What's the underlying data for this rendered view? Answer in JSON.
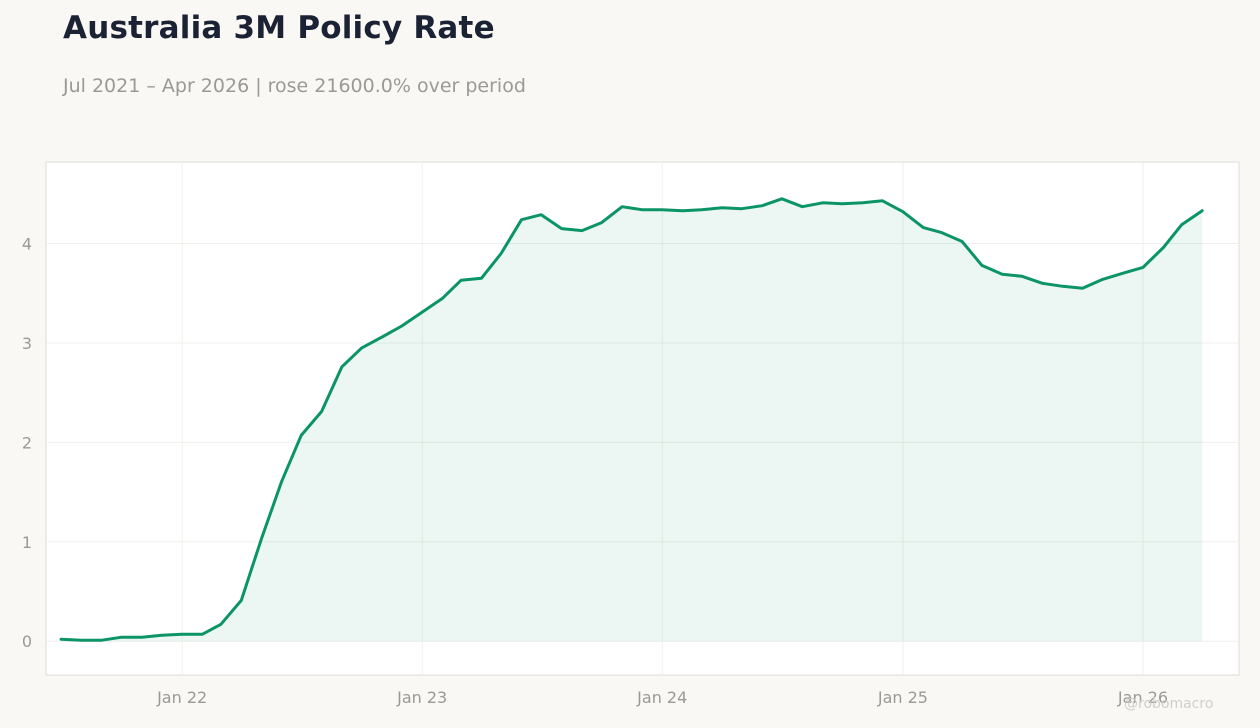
{
  "header": {
    "title": "Australia 3M Policy Rate",
    "subtitle": "Jul 2021 – Apr 2026 | rose 21600.0% over period"
  },
  "watermark": "@robomacro",
  "colors": {
    "line": "#0b9467",
    "fill": "#0b9467",
    "background": "#f9f8f5",
    "plot_background": "#ffffff",
    "grid": "#efefeb",
    "axis_text": "#999995",
    "title": "#1a2234"
  },
  "chart_data": {
    "type": "area",
    "title": "Australia 3M Policy Rate",
    "xlabel": "",
    "ylabel": "",
    "grid": true,
    "legend": "none",
    "x_range": [
      "2021-06-08",
      "2026-05-27"
    ],
    "ylim": [
      -0.34,
      4.82
    ],
    "yticks": [
      0,
      1,
      2,
      3,
      4
    ],
    "xticks": [
      {
        "date": "2022-01-01",
        "label": "Jan 22"
      },
      {
        "date": "2023-01-01",
        "label": "Jan 23"
      },
      {
        "date": "2024-01-01",
        "label": "Jan 24"
      },
      {
        "date": "2025-01-01",
        "label": "Jan 25"
      },
      {
        "date": "2026-01-01",
        "label": "Jan 26"
      }
    ],
    "series": [
      {
        "x": [
          "2021-07-01",
          "2021-08-01",
          "2021-09-01",
          "2021-10-01",
          "2021-11-01",
          "2021-12-01",
          "2022-01-01",
          "2022-02-01",
          "2022-03-01",
          "2022-04-01",
          "2022-05-01",
          "2022-06-01",
          "2022-07-01",
          "2022-08-01",
          "2022-09-01",
          "2022-10-01",
          "2022-11-01",
          "2022-12-01",
          "2023-01-01",
          "2023-02-01",
          "2023-03-01",
          "2023-04-01",
          "2023-05-01",
          "2023-06-01",
          "2023-07-01",
          "2023-08-01",
          "2023-09-01",
          "2023-10-01",
          "2023-11-01",
          "2023-12-01",
          "2024-01-01",
          "2024-02-01",
          "2024-03-01",
          "2024-04-01",
          "2024-05-01",
          "2024-06-01",
          "2024-07-01",
          "2024-08-01",
          "2024-09-01",
          "2024-10-01",
          "2024-11-01",
          "2024-12-01",
          "2025-01-01",
          "2025-02-01",
          "2025-03-01",
          "2025-04-01",
          "2025-05-01",
          "2025-06-01",
          "2025-07-01",
          "2025-08-01",
          "2025-09-01",
          "2025-10-01",
          "2025-11-01",
          "2025-12-01",
          "2026-01-01",
          "2026-02-01",
          "2026-03-01",
          "2026-04-01"
        ],
        "values": [
          0.02,
          0.01,
          0.01,
          0.04,
          0.04,
          0.06,
          0.07,
          0.07,
          0.17,
          0.41,
          1.02,
          1.6,
          2.07,
          2.31,
          2.76,
          2.95,
          3.06,
          3.17,
          3.31,
          3.45,
          3.63,
          3.65,
          3.9,
          4.24,
          4.29,
          4.15,
          4.13,
          4.21,
          4.37,
          4.34,
          4.34,
          4.33,
          4.34,
          4.36,
          4.35,
          4.38,
          4.45,
          4.37,
          4.41,
          4.4,
          4.41,
          4.43,
          4.32,
          4.16,
          4.11,
          4.02,
          3.78,
          3.69,
          3.67,
          3.6,
          3.57,
          3.55,
          3.64,
          3.7,
          3.76,
          3.96,
          4.19,
          4.33
        ]
      }
    ]
  }
}
